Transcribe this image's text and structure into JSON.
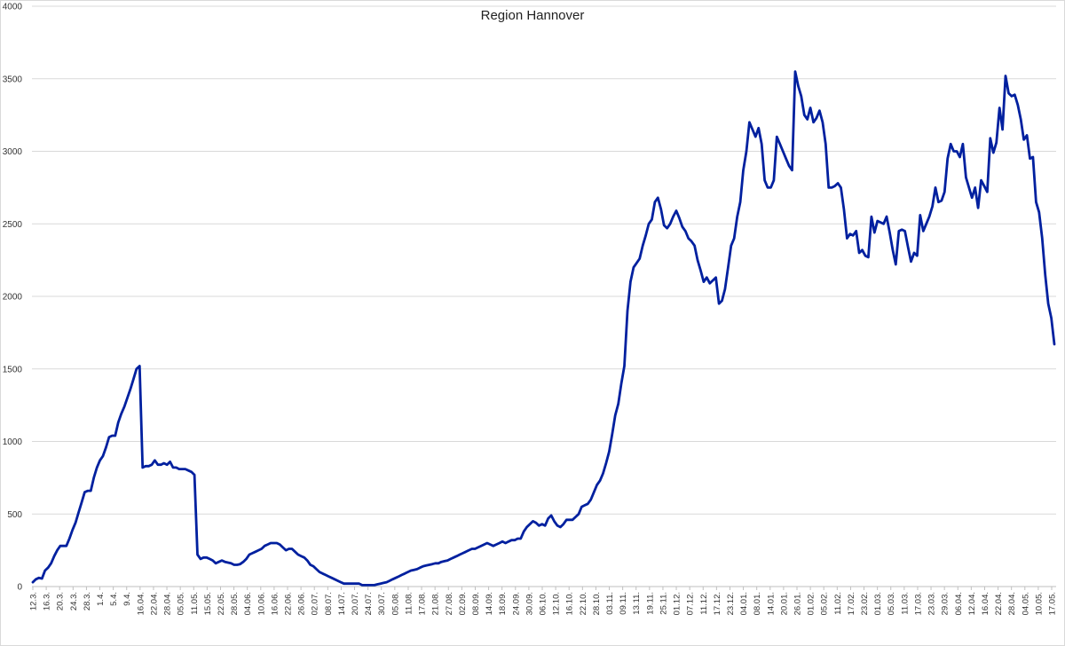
{
  "chart_data": {
    "type": "line",
    "title": "Region Hannover",
    "xlabel": "",
    "ylabel": "",
    "ylim": [
      0,
      4000
    ],
    "yticks": [
      0,
      500,
      1000,
      1500,
      2000,
      2500,
      3000,
      3500,
      4000
    ],
    "grid": "horizontal",
    "legend": "none",
    "series_color": "#00209f",
    "grid_color": "#d9d9d9",
    "x_tick_labels": [
      "12.3.",
      "16.3.",
      "20.3.",
      "24.3.",
      "28.3.",
      "1.4.",
      "5.4.",
      "9.4.",
      "16.04.",
      "22.04.",
      "28.04.",
      "05.05.",
      "11.05.",
      "15.05.",
      "22.05.",
      "28.05.",
      "04.06.",
      "10.06.",
      "16.06.",
      "22.06.",
      "26.06.",
      "02.07.",
      "08.07.",
      "14.07.",
      "20.07.",
      "24.07.",
      "30.07.",
      "05.08.",
      "11.08.",
      "17.08.",
      "21.08.",
      "27.08.",
      "02.09.",
      "08.09.",
      "14.09.",
      "18.09.",
      "24.09.",
      "30.09.",
      "06.10.",
      "12.10.",
      "16.10.",
      "22.10.",
      "28.10.",
      "03.11.",
      "09.11.",
      "13.11.",
      "19.11.",
      "25.11.",
      "01.12.",
      "07.12.",
      "11.12.",
      "17.12.",
      "23.12.",
      "04.01.",
      "08.01.",
      "14.01.",
      "20.01.",
      "26.01.",
      "01.02.",
      "05.02.",
      "11.02.",
      "17.02.",
      "23.02.",
      "01.03.",
      "05.03.",
      "11.03.",
      "17.03.",
      "23.03.",
      "29.03.",
      "06.04.",
      "12.04.",
      "16.04.",
      "22.04.",
      "28.04.",
      "04.05.",
      "10.05.",
      "17.05."
    ],
    "series": [
      {
        "values": [
          30,
          50,
          60,
          55,
          110,
          130,
          160,
          210,
          250,
          280,
          280,
          280,
          330,
          390,
          440,
          510,
          580,
          650,
          660,
          660,
          750,
          820,
          870,
          900,
          960,
          1030,
          1040,
          1040,
          1130,
          1190,
          1240,
          1300,
          1360,
          1430,
          1500,
          1520,
          820,
          830,
          830,
          840,
          870,
          840,
          840,
          850,
          840,
          860,
          820,
          820,
          810,
          810,
          810,
          800,
          790,
          770,
          220,
          190,
          200,
          200,
          190,
          180,
          160,
          170,
          180,
          170,
          165,
          160,
          150,
          150,
          155,
          170,
          190,
          220,
          230,
          240,
          250,
          260,
          280,
          290,
          300,
          300,
          300,
          290,
          270,
          250,
          260,
          260,
          240,
          220,
          210,
          200,
          180,
          150,
          140,
          120,
          100,
          90,
          80,
          70,
          60,
          50,
          40,
          30,
          20,
          20,
          20,
          20,
          20,
          20,
          10,
          10,
          10,
          10,
          10,
          15,
          20,
          25,
          30,
          40,
          50,
          60,
          70,
          80,
          90,
          100,
          110,
          115,
          120,
          130,
          140,
          145,
          150,
          155,
          160,
          160,
          170,
          175,
          180,
          190,
          200,
          210,
          220,
          230,
          240,
          250,
          260,
          260,
          270,
          280,
          290,
          300,
          290,
          280,
          290,
          300,
          310,
          300,
          310,
          320,
          320,
          330,
          330,
          380,
          410,
          430,
          450,
          440,
          420,
          430,
          420,
          470,
          490,
          450,
          420,
          410,
          430,
          460,
          460,
          460,
          480,
          500,
          550,
          560,
          570,
          600,
          650,
          700,
          730,
          780,
          850,
          930,
          1050,
          1180,
          1260,
          1400,
          1520,
          1900,
          2100,
          2200,
          2230,
          2260,
          2350,
          2420,
          2500,
          2530,
          2650,
          2680,
          2600,
          2490,
          2470,
          2500,
          2550,
          2590,
          2540,
          2480,
          2450,
          2400,
          2380,
          2350,
          2250,
          2180,
          2100,
          2130,
          2090,
          2110,
          2130,
          1950,
          1970,
          2050,
          2200,
          2350,
          2400,
          2550,
          2650,
          2870,
          3000,
          3200,
          3150,
          3100,
          3160,
          3050,
          2800,
          2750,
          2750,
          2800,
          3100,
          3050,
          3000,
          2950,
          2900,
          2870,
          3550,
          3450,
          3380,
          3250,
          3220,
          3300,
          3200,
          3230,
          3280,
          3200,
          3050,
          2750,
          2750,
          2760,
          2780,
          2750,
          2600,
          2400,
          2430,
          2420,
          2450,
          2300,
          2320,
          2280,
          2270,
          2550,
          2440,
          2520,
          2510,
          2500,
          2550,
          2440,
          2320,
          2220,
          2450,
          2460,
          2450,
          2340,
          2240,
          2300,
          2280,
          2560,
          2450,
          2500,
          2550,
          2620,
          2750,
          2650,
          2660,
          2720,
          2950,
          3050,
          3000,
          3000,
          2960,
          3050,
          2820,
          2750,
          2680,
          2750,
          2610,
          2800,
          2760,
          2720,
          3090,
          2990,
          3060,
          3300,
          3150,
          3520,
          3400,
          3380,
          3390,
          3320,
          3220,
          3080,
          3110,
          2950,
          2960,
          2650,
          2580,
          2400,
          2150,
          1950,
          1850,
          1670
        ]
      }
    ]
  }
}
